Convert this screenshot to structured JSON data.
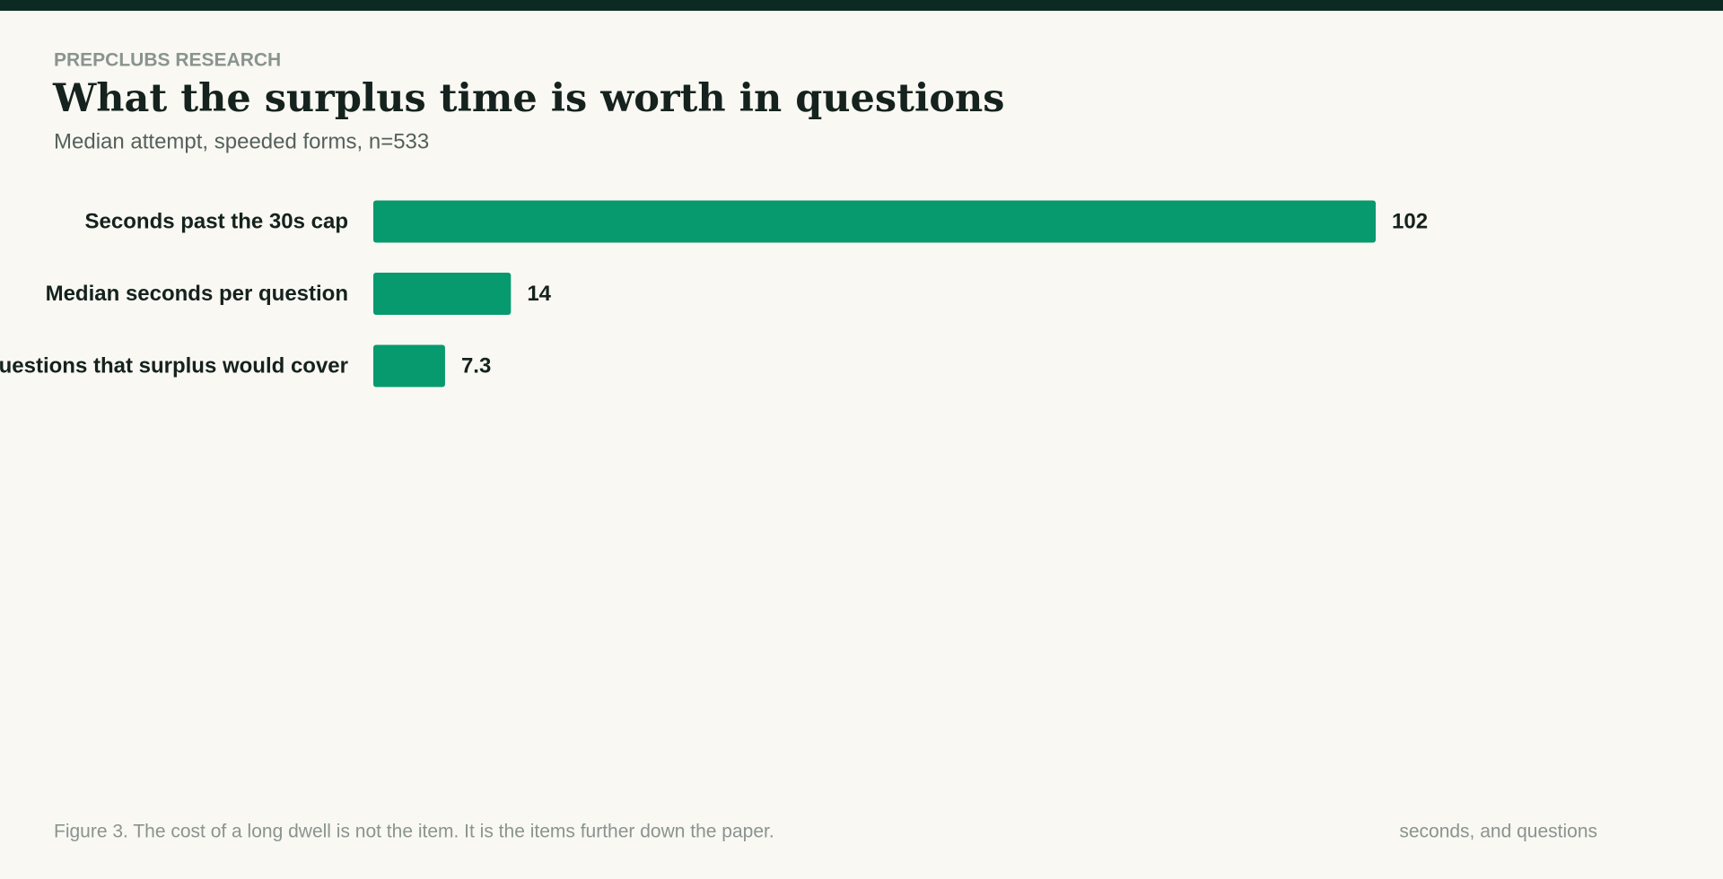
{
  "chart_data": {
    "type": "bar",
    "orientation": "horizontal",
    "kicker": "PREPCLUBS RESEARCH",
    "title": "What the surplus time is worth in questions",
    "subtitle": "Median attempt, speeded forms, n=533",
    "categories": [
      "Seconds past the 30s cap",
      "Median seconds per question",
      "Questions that surplus would cover"
    ],
    "values": [
      102,
      14,
      7.3
    ],
    "color": "#069a6e",
    "caption": "Figure 3. The cost of a long dwell is not the item. It is the items further down the paper.",
    "units_note": "seconds, and questions"
  }
}
